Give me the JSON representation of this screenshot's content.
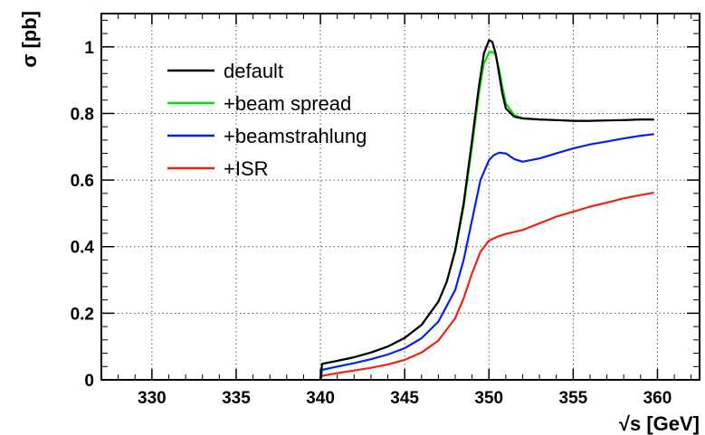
{
  "chart_data": {
    "type": "line",
    "title": "",
    "xlabel": "√s [GeV]",
    "ylabel": "σ [pb]",
    "xlim": [
      327,
      362.5
    ],
    "ylim": [
      0,
      1.1
    ],
    "x_ticks": [
      330,
      335,
      340,
      345,
      350,
      355,
      360
    ],
    "y_ticks": [
      0,
      0.2,
      0.4,
      0.6,
      0.8,
      1
    ],
    "x_tick_labels": [
      "330",
      "335",
      "340",
      "345",
      "350",
      "355",
      "360"
    ],
    "y_tick_labels": [
      "0",
      "0.2",
      "0.4",
      "0.6",
      "0.8",
      "1"
    ],
    "grid": true,
    "legend_position": "top-left",
    "series": [
      {
        "name": "default",
        "color": "#000000",
        "x": [
          340.0,
          340.1,
          341.0,
          342.0,
          343.0,
          344.0,
          345.0,
          346.0,
          347.0,
          347.5,
          348.0,
          348.5,
          349.0,
          349.4,
          349.7,
          350.0,
          350.2,
          350.4,
          350.6,
          350.8,
          351.0,
          351.5,
          352.0,
          353.0,
          354.0,
          355.0,
          356.0,
          357.0,
          358.0,
          359.0,
          359.8
        ],
        "y": [
          0.0,
          0.048,
          0.057,
          0.068,
          0.082,
          0.1,
          0.126,
          0.165,
          0.235,
          0.295,
          0.39,
          0.53,
          0.72,
          0.88,
          0.98,
          1.02,
          1.015,
          0.98,
          0.92,
          0.86,
          0.815,
          0.79,
          0.785,
          0.782,
          0.78,
          0.778,
          0.778,
          0.779,
          0.78,
          0.782,
          0.782
        ]
      },
      {
        "name": "+beam spread",
        "color": "#00e000",
        "x": [
          340.0,
          340.1,
          341.0,
          342.0,
          343.0,
          344.0,
          345.0,
          346.0,
          347.0,
          347.5,
          348.0,
          348.5,
          349.0,
          349.4,
          349.7,
          350.0,
          350.2,
          350.4,
          350.6,
          350.8,
          351.0,
          351.5,
          352.0,
          353.0,
          354.0,
          355.0,
          356.0,
          357.0,
          358.0,
          359.0,
          359.8
        ],
        "y": [
          0.0,
          0.048,
          0.057,
          0.068,
          0.082,
          0.1,
          0.126,
          0.165,
          0.235,
          0.295,
          0.385,
          0.52,
          0.7,
          0.86,
          0.95,
          0.982,
          0.985,
          0.975,
          0.935,
          0.88,
          0.83,
          0.795,
          0.786,
          0.782,
          0.78,
          0.778,
          0.778,
          0.779,
          0.78,
          0.782,
          0.782
        ]
      },
      {
        "name": "+beamstrahlung",
        "color": "#0022ee",
        "x": [
          340.0,
          340.1,
          341.0,
          342.0,
          343.0,
          344.0,
          345.0,
          346.0,
          347.0,
          348.0,
          348.5,
          349.0,
          349.5,
          350.0,
          350.3,
          350.6,
          351.0,
          351.5,
          352.0,
          353.0,
          354.0,
          355.0,
          356.0,
          357.0,
          358.0,
          359.0,
          359.8
        ],
        "y": [
          0.0,
          0.03,
          0.04,
          0.05,
          0.062,
          0.076,
          0.095,
          0.125,
          0.175,
          0.27,
          0.36,
          0.48,
          0.6,
          0.66,
          0.675,
          0.682,
          0.68,
          0.663,
          0.655,
          0.665,
          0.68,
          0.695,
          0.707,
          0.716,
          0.725,
          0.733,
          0.738
        ]
      },
      {
        "name": "+ISR",
        "color": "#ee2211",
        "x": [
          340.0,
          340.1,
          341.0,
          342.0,
          343.0,
          344.0,
          345.0,
          346.0,
          347.0,
          348.0,
          348.5,
          349.0,
          349.5,
          350.0,
          350.5,
          351.0,
          352.0,
          353.0,
          354.0,
          355.0,
          356.0,
          357.0,
          358.0,
          359.0,
          359.8
        ],
        "y": [
          0.0,
          0.012,
          0.02,
          0.028,
          0.036,
          0.046,
          0.06,
          0.082,
          0.118,
          0.185,
          0.245,
          0.32,
          0.385,
          0.418,
          0.43,
          0.438,
          0.45,
          0.47,
          0.49,
          0.505,
          0.52,
          0.532,
          0.545,
          0.555,
          0.562
        ]
      }
    ]
  }
}
